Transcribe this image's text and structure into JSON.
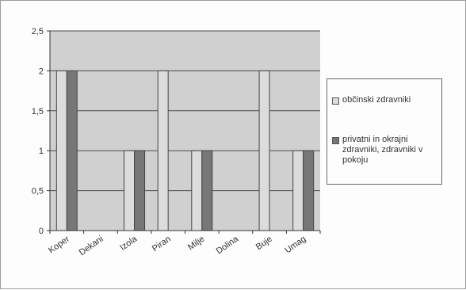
{
  "chart_data": {
    "type": "bar",
    "categories": [
      "Koper",
      "Dekani",
      "Izola",
      "Piran",
      "Milje",
      "Dolina",
      "Buje",
      "Umag"
    ],
    "series": [
      {
        "name": "občinski zdravniki",
        "values": [
          2,
          0,
          1,
          2,
          1,
          0,
          2,
          1
        ],
        "color": "#dcdcdc"
      },
      {
        "name": "privatni in okrajni zdravniki, zdravniki v pokoju",
        "values": [
          2,
          0,
          1,
          0,
          1,
          0,
          0,
          1
        ],
        "color": "#777777"
      }
    ],
    "ylim": [
      0,
      2.5
    ],
    "yticks": [
      "0",
      "0,5",
      "1",
      "1,5",
      "2",
      "2,5"
    ],
    "ytick_values": [
      0,
      0.5,
      1,
      1.5,
      2,
      2.5
    ],
    "grid": true,
    "legend_position": "right",
    "plot_background": "#d0d0d0",
    "title": "",
    "xlabel": "",
    "ylabel": ""
  }
}
